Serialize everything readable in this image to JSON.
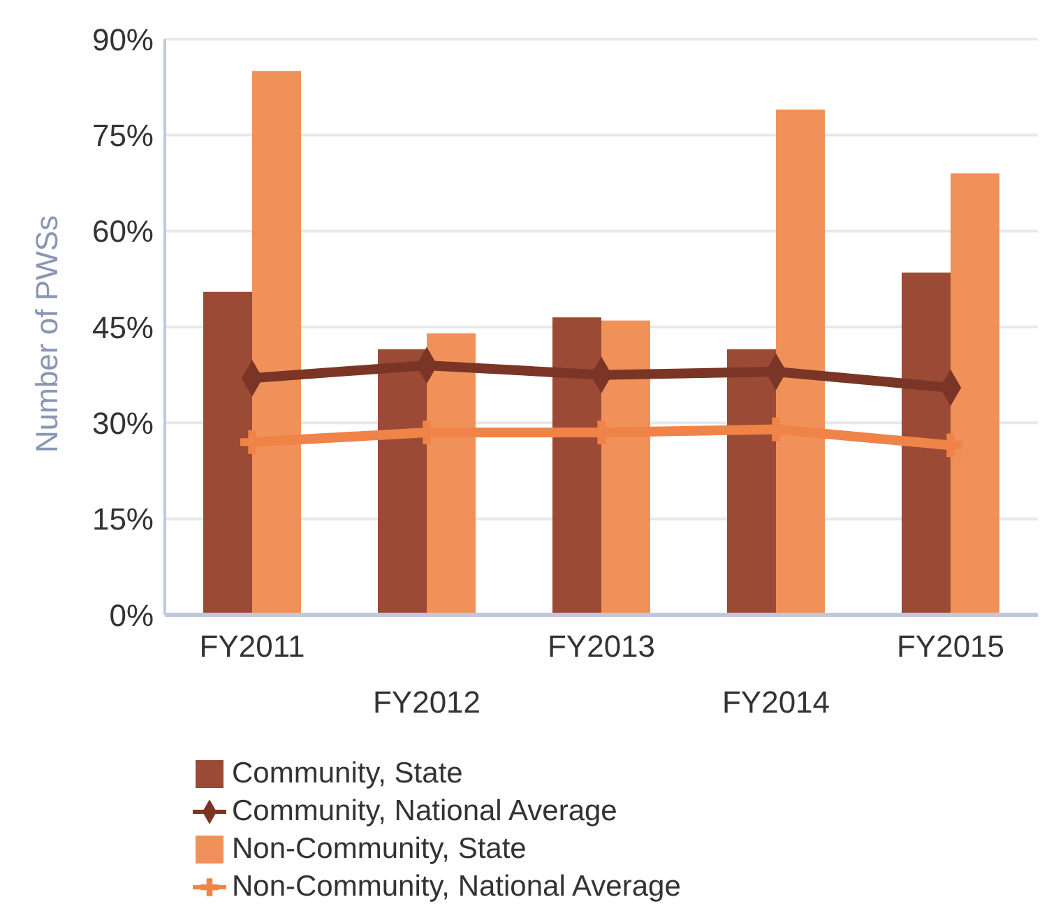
{
  "chart_data": {
    "type": "bar",
    "ylabel": "Number of PWSs",
    "categories": [
      "FY2011",
      "FY2012",
      "FY2013",
      "FY2014",
      "FY2015"
    ],
    "series": [
      {
        "name": "Community,  State",
        "color": "#9b4a35",
        "values": [
          50.5,
          41.5,
          46.5,
          41.5,
          53.5
        ]
      },
      {
        "name": "Community, National Average",
        "type": "line",
        "marker": "diamond",
        "color": "#7a3526",
        "values": [
          37,
          39,
          37.5,
          38,
          35.5
        ]
      },
      {
        "name": "Non-Community,  State",
        "color": "#f0915a",
        "values": [
          85,
          44,
          46,
          79,
          69
        ]
      },
      {
        "name": "Non-Community, National Average",
        "type": "line",
        "marker": "cross",
        "color": "#f08448",
        "values": [
          27,
          28.5,
          28.5,
          29,
          26.5
        ]
      }
    ],
    "ylim": [
      0,
      90
    ],
    "yticks": [
      {
        "value": 0,
        "label": "0%"
      },
      {
        "value": 15,
        "label": "15%"
      },
      {
        "value": 30,
        "label": "30%"
      },
      {
        "value": 45,
        "label": "45%"
      },
      {
        "value": 60,
        "label": "60%"
      },
      {
        "value": 75,
        "label": "75%"
      },
      {
        "value": 90,
        "label": "90%"
      }
    ],
    "grid": "y",
    "legend": "bottom"
  }
}
